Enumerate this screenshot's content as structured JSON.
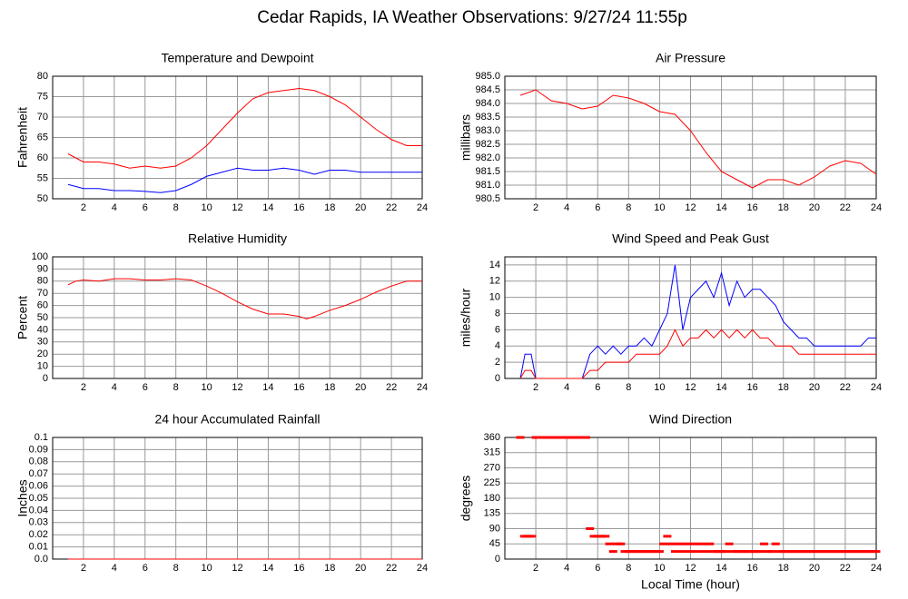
{
  "title": "Cedar Rapids, IA Weather Observations: 9/27/24 11:55p",
  "chart_data": [
    {
      "type": "line",
      "title": "Temperature and Dewpoint",
      "ylabel": "Fahrenheit",
      "x": [
        1,
        2,
        3,
        4,
        5,
        6,
        7,
        8,
        9,
        10,
        11,
        12,
        13,
        14,
        15,
        16,
        17,
        18,
        19,
        20,
        21,
        22,
        23,
        24
      ],
      "series": [
        {
          "color": "#ff0000",
          "values": [
            61,
            59,
            59,
            58.5,
            57.5,
            58,
            57.5,
            58,
            60,
            63,
            67,
            71,
            74.5,
            76,
            76.5,
            77,
            76.5,
            75,
            73,
            70,
            67,
            64.5,
            63,
            63
          ]
        },
        {
          "color": "#0000ff",
          "values": [
            53.5,
            52.5,
            52.5,
            52,
            52,
            51.8,
            51.5,
            52,
            53.5,
            55.5,
            56.5,
            57.5,
            57,
            57,
            57.5,
            57,
            56,
            57,
            57,
            56.5,
            56.5,
            56.5,
            56.5,
            56.5
          ]
        }
      ],
      "xlim": [
        0,
        24
      ],
      "ylim": [
        50,
        80
      ],
      "xticks": [
        2,
        4,
        6,
        8,
        10,
        12,
        14,
        16,
        18,
        20,
        22,
        24
      ],
      "yticks": [
        50,
        55,
        60,
        65,
        70,
        75,
        80
      ],
      "grid": true
    },
    {
      "type": "line",
      "title": "Air Pressure",
      "ylabel": "millibars",
      "x": [
        1,
        2,
        3,
        4,
        5,
        6,
        7,
        8,
        9,
        10,
        11,
        12,
        13,
        14,
        15,
        16,
        17,
        18,
        19,
        20,
        21,
        22,
        23,
        24
      ],
      "series": [
        {
          "color": "#ff0000",
          "values": [
            984.3,
            984.5,
            984.1,
            984.0,
            983.8,
            983.9,
            984.3,
            984.2,
            984.0,
            983.7,
            983.6,
            983.0,
            982.2,
            981.5,
            981.2,
            980.9,
            981.2,
            981.2,
            981.0,
            981.3,
            981.7,
            981.9,
            981.8,
            981.4
          ]
        }
      ],
      "xlim": [
        0,
        24
      ],
      "ylim": [
        980.5,
        985.0
      ],
      "xticks": [
        2,
        4,
        6,
        8,
        10,
        12,
        14,
        16,
        18,
        20,
        22,
        24
      ],
      "yticks": [
        980.5,
        {
          "value": 981,
          "label": "981.0"
        },
        981.5,
        {
          "value": 982,
          "label": "982.0"
        },
        982.5,
        {
          "value": 983,
          "label": "983.0"
        },
        983.5,
        {
          "value": 984,
          "label": "984.0"
        },
        984.5,
        {
          "value": 985,
          "label": "985.0"
        }
      ],
      "grid": true
    },
    {
      "type": "line",
      "title": "Relative Humidity",
      "ylabel": "Percent",
      "x": [
        1,
        1.5,
        2,
        3,
        4,
        5,
        6,
        7,
        8,
        9,
        10,
        11,
        12,
        13,
        14,
        15,
        16,
        16.5,
        17,
        18,
        19,
        20,
        21,
        22,
        23,
        24
      ],
      "series": [
        {
          "color": "#ff0000",
          "values": [
            77,
            80,
            81,
            80,
            82,
            82,
            81,
            81,
            82,
            81,
            76,
            70,
            63,
            57,
            53,
            53,
            51,
            49,
            51,
            56,
            60,
            65,
            71,
            76,
            80,
            80
          ]
        }
      ],
      "xlim": [
        0,
        24
      ],
      "ylim": [
        0,
        100
      ],
      "xticks": [
        2,
        4,
        6,
        8,
        10,
        12,
        14,
        16,
        18,
        20,
        22,
        24
      ],
      "yticks": [
        0,
        10,
        20,
        30,
        40,
        50,
        60,
        70,
        80,
        90,
        100
      ],
      "grid": true
    },
    {
      "type": "line",
      "title": "Wind Speed and Peak Gust",
      "ylabel": "miles/hour",
      "x": [
        1,
        1.3,
        1.7,
        2,
        3,
        4,
        5,
        5.5,
        6,
        6.5,
        7,
        7.5,
        8,
        8.5,
        9,
        9.5,
        10,
        10.5,
        11,
        11.5,
        12,
        12.5,
        13,
        13.5,
        14,
        14.5,
        15,
        15.5,
        16,
        16.5,
        17,
        17.5,
        18,
        18.5,
        19,
        19.5,
        20,
        20.5,
        21,
        22,
        23,
        23.5,
        24
      ],
      "series": [
        {
          "color": "#0000ff",
          "values": [
            0,
            3,
            3,
            0,
            0,
            0,
            0,
            3,
            4,
            3,
            4,
            3,
            4,
            4,
            5,
            4,
            6,
            8,
            14,
            6,
            10,
            11,
            12,
            10,
            13,
            9,
            12,
            10,
            11,
            11,
            10,
            9,
            7,
            6,
            5,
            5,
            4,
            4,
            4,
            4,
            4,
            5,
            5
          ]
        },
        {
          "color": "#ff0000",
          "values": [
            0,
            1,
            1,
            0,
            0,
            0,
            0,
            1,
            1,
            2,
            2,
            2,
            2,
            3,
            3,
            3,
            3,
            4,
            6,
            4,
            5,
            5,
            6,
            5,
            6,
            5,
            6,
            5,
            6,
            5,
            5,
            4,
            4,
            4,
            3,
            3,
            3,
            3,
            3,
            3,
            3,
            3,
            3
          ]
        }
      ],
      "xlim": [
        0,
        24
      ],
      "ylim": [
        0,
        15
      ],
      "xticks": [
        2,
        4,
        6,
        8,
        10,
        12,
        14,
        16,
        18,
        20,
        22,
        24
      ],
      "yticks": [
        0,
        2,
        4,
        6,
        8,
        10,
        12,
        14
      ],
      "grid": true
    },
    {
      "type": "line",
      "title": "24 hour Accumulated Rainfall",
      "ylabel": "Inches",
      "x": [
        1,
        24
      ],
      "series": [
        {
          "color": "#ff0000",
          "values": [
            0,
            0
          ]
        }
      ],
      "xlim": [
        0,
        24
      ],
      "ylim": [
        0,
        0.1
      ],
      "xticks": [
        2,
        4,
        6,
        8,
        10,
        12,
        14,
        16,
        18,
        20,
        22,
        24
      ],
      "yticks": [
        {
          "value": 0,
          "label": "0.0"
        },
        0.01,
        0.02,
        0.03,
        0.04,
        0.05,
        0.06,
        0.07,
        0.08,
        0.09,
        0.1
      ],
      "grid": true
    },
    {
      "type": "scatter",
      "title": "Wind Direction",
      "ylabel": "degrees",
      "xlabel": "Local Time (hour)",
      "x": [
        1,
        1.25,
        1.5,
        1.75,
        2,
        2.25,
        2.5,
        2.75,
        3,
        3.25,
        3.5,
        3.75,
        4,
        4.25,
        4.5,
        4.75,
        5,
        5.25,
        5.5,
        5.75,
        6,
        6.25,
        6.5,
        6.75,
        7,
        7.25,
        7.5,
        7.75,
        8,
        8.25,
        8.5,
        8.75,
        9,
        9.25,
        9.5,
        9.75,
        10,
        10.25,
        10.5,
        10.75,
        11,
        11.25,
        11.5,
        11.75,
        12,
        12.25,
        12.5,
        12.75,
        13,
        13.25,
        13.5,
        13.75,
        14,
        14.25,
        14.5,
        14.75,
        15,
        15.25,
        15.5,
        15.75,
        16,
        16.25,
        16.5,
        16.75,
        17,
        17.25,
        17.5,
        17.75,
        18,
        18.25,
        18.5,
        18.75,
        19,
        19.25,
        19.5,
        19.75,
        20,
        20.25,
        20.5,
        20.75,
        21,
        21.25,
        21.5,
        21.75,
        22,
        22.25,
        22.5,
        22.75,
        23,
        23.25,
        23.5,
        23.75,
        24
      ],
      "series": [
        {
          "color": "#ff0000",
          "values": [
            360,
            67.5,
            67.5,
            67.5,
            360,
            360,
            360,
            360,
            360,
            360,
            360,
            360,
            360,
            360,
            360,
            360,
            360,
            360,
            90,
            67.5,
            67.5,
            67.5,
            67.5,
            45,
            22.5,
            45,
            45,
            22.5,
            22.5,
            22.5,
            22.5,
            22.5,
            22.5,
            22.5,
            22.5,
            22.5,
            22.5,
            45,
            67.5,
            45,
            22.5,
            45,
            22.5,
            45,
            22.5,
            45,
            22.5,
            45,
            22.5,
            45,
            22.5,
            22.5,
            22.5,
            22.5,
            45,
            22.5,
            22.5,
            22.5,
            22.5,
            22.5,
            22.5,
            22.5,
            22.5,
            45,
            22.5,
            22.5,
            45,
            22.5,
            22.5,
            22.5,
            22.5,
            22.5,
            22.5,
            22.5,
            22.5,
            22.5,
            22.5,
            22.5,
            22.5,
            22.5,
            22.5,
            22.5,
            22.5,
            22.5,
            22.5,
            22.5,
            22.5,
            22.5,
            22.5,
            22.5,
            22.5,
            22.5,
            22.5
          ]
        }
      ],
      "xlim": [
        0,
        24
      ],
      "ylim": [
        0,
        360
      ],
      "xticks": [
        2,
        4,
        6,
        8,
        10,
        12,
        14,
        16,
        18,
        20,
        22,
        24
      ],
      "yticks": [
        0,
        45,
        90,
        135,
        180,
        225,
        270,
        315,
        360
      ],
      "grid": true
    }
  ]
}
